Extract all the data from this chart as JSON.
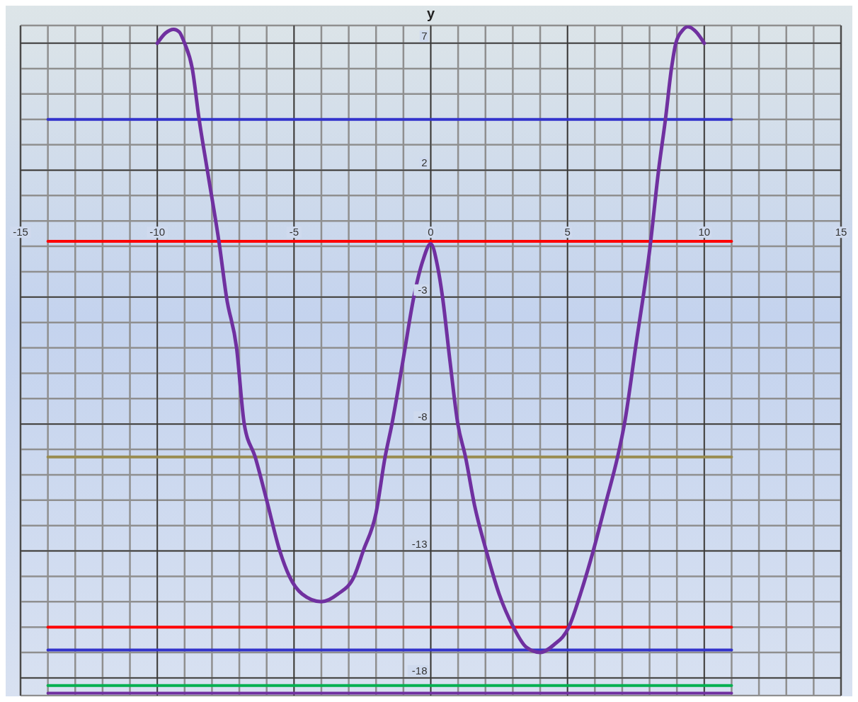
{
  "chart_data": {
    "type": "line",
    "ylabel": "y",
    "xlim": [
      -15,
      15
    ],
    "xticks": [
      -15,
      -10,
      -5,
      0,
      5,
      10,
      15
    ],
    "ylim": [
      -18.7,
      7.7
    ],
    "yticks": [
      7,
      2,
      -3,
      -8,
      -13,
      -18
    ],
    "grid": true,
    "marker": "none",
    "line_style": "solid",
    "series": [
      {
        "color": "#3333cc",
        "x": [
          -14,
          11
        ],
        "values": [
          4,
          4
        ]
      },
      {
        "type": "line",
        "color": "#ff0000",
        "x": [
          -14,
          11
        ],
        "values": [
          -0.8,
          -0.8
        ]
      },
      {
        "type": "line",
        "color": "#998c50",
        "x": [
          -14,
          11
        ],
        "values": [
          -9.3,
          -9.3
        ]
      },
      {
        "type": "line",
        "color": "#ff0000",
        "x": [
          -14,
          11
        ],
        "values": [
          -16,
          -16
        ]
      },
      {
        "type": "line",
        "color": "#3333cc",
        "x": [
          -14,
          11
        ],
        "values": [
          -16.9,
          -16.9
        ]
      },
      {
        "type": "line",
        "color": "#00b050",
        "x": [
          -14,
          11
        ],
        "values": [
          -18.3,
          -18.3
        ]
      },
      {
        "type": "line",
        "color": "#7030a0",
        "x": [
          -14,
          11
        ],
        "values": [
          -18.6,
          -18.6
        ]
      },
      {
        "type": "line",
        "color": "#7030a0",
        "x": [
          -10,
          -9.7,
          -9.4,
          -9.2,
          -9,
          -8.72,
          -8.47,
          -8.17,
          -7.72,
          -7.47,
          -7.1,
          -6.82,
          -6.42,
          -6,
          -5.52,
          -5.17,
          -4.7,
          -4,
          -3.4,
          -2.8,
          -2.47,
          -2,
          -1.67,
          -1.42,
          -1,
          -0.62,
          -0.3,
          0,
          0.25,
          0.43,
          0.7,
          0.99,
          1.27,
          1.6,
          2.03,
          2.5,
          3.02,
          3.5,
          4,
          4.5,
          5.05,
          5.5,
          5.94,
          6.4,
          6.83,
          7.08,
          7.5,
          8.02,
          8.33,
          8.58,
          8.8,
          8.96,
          9.2,
          9.4,
          9.7,
          10
        ],
        "values": [
          7,
          7.4,
          7.55,
          7.45,
          7,
          6,
          4,
          2,
          -1,
          -3,
          -5,
          -8,
          -9.3,
          -11,
          -13,
          -14,
          -14.7,
          -15,
          -14.7,
          -14,
          -13,
          -11.5,
          -9.3,
          -8,
          -5.4,
          -3,
          -1.6,
          -0.9,
          -1.8,
          -3,
          -5.5,
          -8,
          -9.3,
          -11.2,
          -13,
          -14.7,
          -16,
          -16.8,
          -17,
          -16.7,
          -16,
          -14.6,
          -13,
          -11.1,
          -9.3,
          -8,
          -4.9,
          -1,
          2,
          4,
          6,
          7,
          7.5,
          7.65,
          7.45,
          7
        ]
      }
    ]
  }
}
